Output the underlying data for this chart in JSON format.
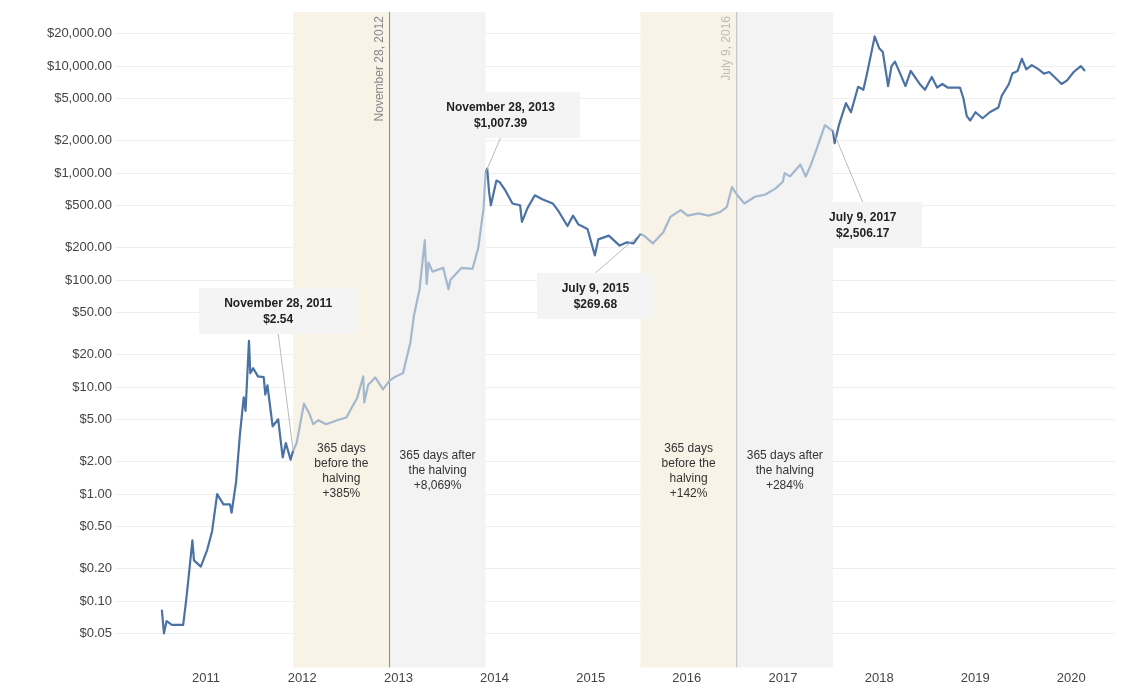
{
  "chart_data": {
    "type": "line",
    "log": "y",
    "grid": "y",
    "legend": false,
    "xlim": [
      "2010-01-20",
      "2020-06-15"
    ],
    "xticks": [
      "2011",
      "2012",
      "2013",
      "2014",
      "2015",
      "2016",
      "2017",
      "2018",
      "2019",
      "2020"
    ],
    "ylim": [
      0.024,
      32000
    ],
    "yticks": [
      {
        "value": 0.05,
        "label": "$0.05"
      },
      {
        "value": 0.1,
        "label": "$0.10"
      },
      {
        "value": 0.2,
        "label": "$0.20"
      },
      {
        "value": 0.5,
        "label": "$0.50"
      },
      {
        "value": 1,
        "label": "$1.00"
      },
      {
        "value": 2,
        "label": "$2.00"
      },
      {
        "value": 5,
        "label": "$5.00"
      },
      {
        "value": 10,
        "label": "$10.00"
      },
      {
        "value": 20,
        "label": "$20.00"
      },
      {
        "value": 50,
        "label": "$50.00"
      },
      {
        "value": 100,
        "label": "$100.00"
      },
      {
        "value": 200,
        "label": "$200.00"
      },
      {
        "value": 500,
        "label": "$500.00"
      },
      {
        "value": 1000,
        "label": "$1,000.00"
      },
      {
        "value": 2000,
        "label": "$2,000.00"
      },
      {
        "value": 5000,
        "label": "$5,000.00"
      },
      {
        "value": 10000,
        "label": "$10,000.00"
      },
      {
        "value": 20000,
        "label": "$20,000.00"
      }
    ],
    "series": [
      {
        "color": "#4a72a5",
        "x": [
          "2010-07-17",
          "2010-07-25",
          "2010-08-04",
          "2010-08-24",
          "2010-10-06",
          "2010-10-17",
          "2010-10-29",
          "2010-11-10",
          "2010-11-16",
          "2010-12-12",
          "2011-01-05",
          "2011-01-24",
          "2011-02-12",
          "2011-03-08",
          "2011-04-02",
          "2011-04-08",
          "2011-04-25",
          "2011-05-10",
          "2011-05-24",
          "2011-05-31",
          "2011-06-13",
          "2011-06-18",
          "2011-06-29",
          "2011-07-17",
          "2011-08-08",
          "2011-08-14",
          "2011-08-22",
          "2011-09-11",
          "2011-10-02",
          "2011-10-19",
          "2011-10-31",
          "2011-11-18",
          "2011-11-28",
          "2012-11-28",
          "2013-11-28",
          "2013-12-04",
          "2013-12-11",
          "2013-12-18",
          "2014-01-08",
          "2014-01-21",
          "2014-02-12",
          "2014-03-10",
          "2014-04-08",
          "2014-04-15",
          "2014-05-06",
          "2014-06-03",
          "2014-07-01",
          "2014-08-10",
          "2014-09-01",
          "2014-10-05",
          "2014-10-26",
          "2014-11-16",
          "2014-12-20",
          "2015-01-17",
          "2015-01-30",
          "2015-03-11",
          "2015-04-21",
          "2015-05-17",
          "2015-06-13",
          "2015-07-09",
          "2016-07-09",
          "2017-07-09",
          "2017-07-16",
          "2017-08-01",
          "2017-08-28",
          "2017-09-16",
          "2017-10-13",
          "2017-11-02",
          "2017-11-16",
          "2017-12-06",
          "2017-12-15",
          "2018-01-01",
          "2018-01-15",
          "2018-02-04",
          "2018-02-17",
          "2018-03-02",
          "2018-03-22",
          "2018-04-11",
          "2018-05-01",
          "2018-06-04",
          "2018-06-24",
          "2018-07-20",
          "2018-08-09",
          "2018-08-29",
          "2018-09-18",
          "2018-11-04",
          "2018-11-17",
          "2018-11-30",
          "2018-12-13",
          "2019-01-02",
          "2019-01-29",
          "2019-02-25",
          "2019-03-30",
          "2019-04-12",
          "2019-05-09",
          "2019-05-22",
          "2019-06-11",
          "2019-06-27",
          "2019-07-14",
          "2019-08-04",
          "2019-08-30",
          "2019-09-19",
          "2019-10-09",
          "2019-10-29",
          "2019-11-25",
          "2019-12-15",
          "2020-01-10",
          "2020-02-06",
          "2020-02-22"
        ],
        "values": [
          0.083,
          0.05,
          0.065,
          0.06,
          0.06,
          0.1,
          0.19,
          0.37,
          0.24,
          0.21,
          0.3,
          0.45,
          1.0,
          0.8,
          0.8,
          0.67,
          1.3,
          3.7,
          8,
          6,
          27,
          13.5,
          15,
          12.6,
          12.4,
          8.5,
          10.4,
          4.3,
          5.0,
          2.2,
          3.0,
          2.1,
          2.54,
          null,
          1007.39,
          1100,
          670,
          500,
          850,
          820,
          680,
          520,
          500,
          350,
          470,
          620,
          570,
          520,
          440,
          320,
          400,
          330,
          300,
          170,
          240,
          260,
          210,
          225,
          220,
          269.68,
          null,
          2506.17,
          1900,
          2800,
          4500,
          3700,
          6400,
          6000,
          8500,
          14700,
          18900,
          14700,
          13500,
          6500,
          10000,
          11000,
          8500,
          6500,
          9000,
          6800,
          6000,
          7900,
          6300,
          6800,
          6300,
          6300,
          5000,
          3400,
          3100,
          3700,
          3250,
          3700,
          4100,
          5300,
          6800,
          8500,
          9000,
          11700,
          9300,
          10200,
          9300,
          8500,
          8800,
          7900,
          6800,
          7300,
          8800,
          10000,
          9000
        ]
      },
      {
        "color": "#a3b8cf",
        "x": [
          "2011-11-28",
          "2011-12-11",
          "2012-01-08",
          "2012-01-29",
          "2012-02-12",
          "2012-03-03",
          "2012-04-01",
          "2012-05-13",
          "2012-06-17",
          "2012-07-07",
          "2012-07-28",
          "2012-08-20",
          "2012-08-24",
          "2012-09-08",
          "2012-10-05",
          "2012-11-03",
          "2012-11-28",
          "2012-12-20",
          "2013-01-18",
          "2013-02-15",
          "2013-03-01",
          "2013-03-22",
          "2013-04-11",
          "2013-04-18",
          "2013-04-25",
          "2013-05-10",
          "2013-06-20",
          "2013-07-10",
          "2013-07-17",
          "2013-08-28",
          "2013-10-09",
          "2013-10-31",
          "2013-11-20",
          "2013-11-28",
          "2014-12-01",
          "2015-07-09",
          "2015-07-23",
          "2015-08-25",
          "2015-10-04",
          "2015-10-31",
          "2015-12-09",
          "2016-01-05",
          "2016-02-14",
          "2016-03-25",
          "2016-05-05",
          "2016-06-01",
          "2016-06-21",
          "2016-07-09",
          "2016-08-07",
          "2016-09-16",
          "2016-10-26",
          "2016-12-04",
          "2016-12-31",
          "2017-01-07",
          "2017-01-27",
          "2017-03-08",
          "2017-03-28",
          "2017-04-17",
          "2017-05-13",
          "2017-06-09",
          "2017-07-05",
          "2017-07-09"
        ],
        "values": [
          2.54,
          3.0,
          7,
          5.6,
          4.5,
          4.9,
          4.5,
          4.9,
          5.2,
          6.4,
          7.9,
          12.6,
          7.2,
          10.5,
          12.3,
          9.5,
          11.5,
          12.5,
          13.5,
          26,
          47,
          82,
          236,
          92,
          146,
          120,
          130,
          82,
          100,
          130,
          127,
          200,
          465,
          1007.39,
          null,
          269.68,
          260,
          220,
          280,
          390,
          450,
          400,
          420,
          400,
          430,
          480,
          740,
          630,
          520,
          600,
          630,
          720,
          830,
          1000,
          930,
          1200,
          930,
          1200,
          1800,
          2800,
          2500,
          2506.17
        ]
      }
    ],
    "bands": [
      {
        "axis": "x",
        "from": "2011-11-28",
        "to": "2012-11-28",
        "color": "#f8f3e6",
        "label": "365 days\nbefore the\nhalving\n+385%"
      },
      {
        "axis": "x",
        "from": "2012-11-28",
        "to": "2013-11-28",
        "color": "#f3f3f3",
        "label": "365 days after\nthe halving\n+8,069%"
      },
      {
        "axis": "x",
        "from": "2015-07-09",
        "to": "2016-07-09",
        "color": "#f8f3e6",
        "label": "365 days\nbefore the\nhalving\n+142%"
      },
      {
        "axis": "x",
        "from": "2016-07-09",
        "to": "2017-07-09",
        "color": "#f3f3f3",
        "label": "365 days after\nthe halving\n+284%"
      }
    ],
    "ref_lines": [
      {
        "axis": "x",
        "value": "2012-11-28",
        "label": "November 28, 2012",
        "color": "#888888"
      },
      {
        "axis": "x",
        "value": "2016-07-09",
        "label": "July 9, 2016",
        "color": "#bbbbbb"
      }
    ],
    "annotations": [
      {
        "text": "November 28, 2011\n$2.54",
        "x": "2011-11-28",
        "y": 2.54
      },
      {
        "text": "November 28, 2013\n$1,007.39",
        "x": "2013-11-28",
        "y": 1007.39
      },
      {
        "text": "July 9, 2015\n$269.68",
        "x": "2015-07-09",
        "y": 269.68
      },
      {
        "text": "July 9, 2017\n$2,506.17",
        "x": "2017-07-09",
        "y": 2506.17
      }
    ]
  }
}
